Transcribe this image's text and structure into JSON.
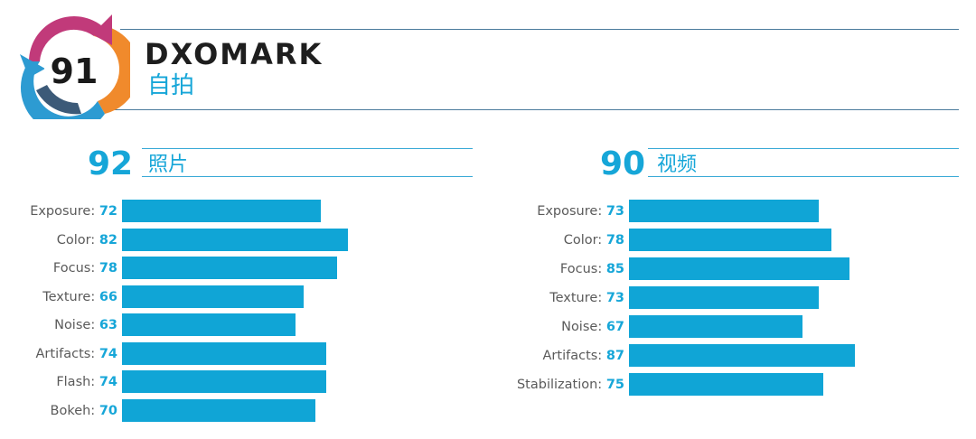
{
  "brand": "DXOMARK",
  "subtitle": "自拍",
  "overall_score": "91",
  "colors": {
    "accent": "#16a6d8",
    "bar": "#10a5d6",
    "rule": "#4a7b9c",
    "badge": [
      "#c13a7a",
      "#f08a2c",
      "#2d9bd2",
      "#3c5a78"
    ]
  },
  "chart_data": [
    {
      "type": "bar",
      "score": "92",
      "title": "照片",
      "categories": [
        "Exposure",
        "Color",
        "Focus",
        "Texture",
        "Noise",
        "Artifacts",
        "Flash",
        "Bokeh"
      ],
      "values": [
        72,
        82,
        78,
        66,
        63,
        74,
        74,
        70
      ],
      "value_labels": [
        "72",
        "82",
        "78",
        "66",
        "63",
        "74",
        "74",
        "70"
      ],
      "label_suffix": ":",
      "xlim": [
        0,
        100
      ]
    },
    {
      "type": "bar",
      "score": "90",
      "title": "视频",
      "categories": [
        "Exposure",
        "Color",
        "Focus",
        "Texture",
        "Noise",
        "Artifacts",
        "Stabilization"
      ],
      "values": [
        73,
        78,
        85,
        73,
        67,
        87,
        75
      ],
      "value_labels": [
        "73",
        "78",
        "85",
        "73",
        "67",
        "87",
        "75"
      ],
      "label_suffix": ":",
      "xlim": [
        0,
        100
      ]
    }
  ]
}
